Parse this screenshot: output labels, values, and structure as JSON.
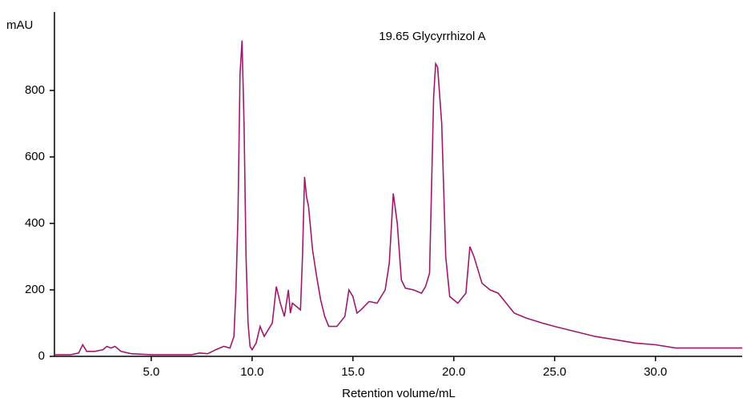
{
  "chart_data": {
    "type": "line",
    "y_label": "mAU",
    "x_label": "Retention volume/mL",
    "annotation": "19.65 Glycyrrhizol A",
    "xlim": [
      0.2,
      34.3
    ],
    "ylim": [
      0,
      1036
    ],
    "xticks": [
      {
        "value": 5,
        "label": "5.0"
      },
      {
        "value": 10,
        "label": "10.0"
      },
      {
        "value": 15,
        "label": "15.0"
      },
      {
        "value": 20,
        "label": "20.0"
      },
      {
        "value": 25,
        "label": "25.0"
      },
      {
        "value": 30,
        "label": "30.0"
      }
    ],
    "yticks": [
      0,
      200,
      400,
      600,
      800
    ],
    "grid": false,
    "x": [
      0.2,
      1.0,
      1.4,
      1.6,
      1.7,
      1.8,
      2.2,
      2.6,
      2.8,
      3.0,
      3.2,
      3.5,
      4.0,
      5.0,
      6.0,
      7.0,
      7.4,
      7.8,
      8.2,
      8.6,
      8.9,
      9.1,
      9.2,
      9.3,
      9.4,
      9.5,
      9.6,
      9.7,
      9.8,
      9.9,
      10.0,
      10.2,
      10.4,
      10.6,
      10.8,
      11.0,
      11.2,
      11.4,
      11.6,
      11.8,
      11.9,
      12.0,
      12.2,
      12.4,
      12.5,
      12.6,
      12.7,
      12.8,
      13.0,
      13.2,
      13.4,
      13.6,
      13.8,
      14.2,
      14.6,
      14.8,
      15.0,
      15.2,
      15.4,
      15.8,
      16.2,
      16.6,
      16.8,
      17.0,
      17.2,
      17.4,
      17.6,
      18.0,
      18.4,
      18.6,
      18.8,
      19.0,
      19.1,
      19.2,
      19.4,
      19.6,
      19.8,
      20.2,
      20.6,
      20.8,
      21.0,
      21.4,
      21.8,
      22.2,
      22.6,
      23.0,
      23.6,
      24.4,
      25.0,
      26.0,
      27.0,
      28.0,
      29.0,
      30.0,
      31.0,
      32.0,
      34.3
    ],
    "series": [
      {
        "color": "#a0186c",
        "values": [
          5,
          5,
          10,
          35,
          25,
          15,
          15,
          20,
          30,
          25,
          30,
          15,
          8,
          5,
          5,
          5,
          10,
          8,
          20,
          30,
          25,
          60,
          200,
          420,
          850,
          950,
          700,
          300,
          100,
          30,
          20,
          40,
          90,
          60,
          80,
          100,
          210,
          160,
          120,
          200,
          130,
          160,
          150,
          140,
          300,
          540,
          480,
          450,
          320,
          240,
          170,
          120,
          90,
          90,
          120,
          200,
          180,
          130,
          140,
          165,
          160,
          200,
          280,
          490,
          400,
          230,
          205,
          200,
          190,
          210,
          250,
          780,
          880,
          870,
          700,
          300,
          180,
          160,
          190,
          330,
          300,
          220,
          200,
          190,
          160,
          130,
          115,
          100,
          90,
          75,
          60,
          50,
          40,
          35,
          25,
          25,
          25
        ]
      }
    ]
  }
}
